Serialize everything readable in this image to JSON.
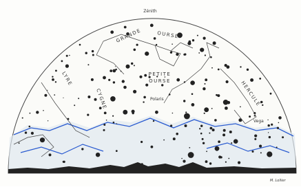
{
  "labels": {
    "zenith": "Zénith",
    "grande": "GRANDE",
    "ourse": "OURSE",
    "petite_ourse_1": "PETITE",
    "petite_ourse_2": "OURSE",
    "polaris": "Polaris",
    "vega": "Vega",
    "lyre": "LYRE",
    "cygne": "CYGNE",
    "hercule": "HERCULE",
    "signature": "M. Lollier"
  }
}
